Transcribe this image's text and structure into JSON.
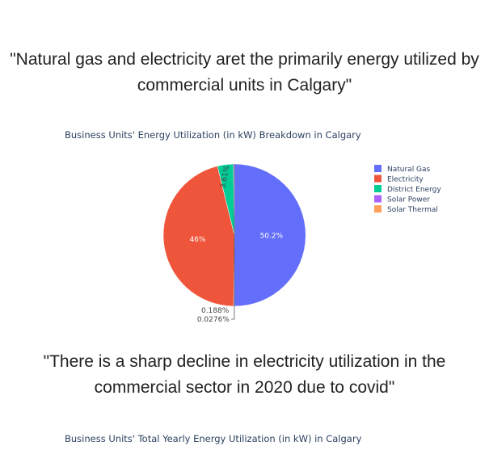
{
  "quote_1": "\"Natural gas and electricity aret the primarily energy utilized by commercial units in Calgary\"",
  "quote_2": "\"There is a sharp decline in electricity utilization in the commercial sector in 2020 due to covid\"",
  "chart_data": [
    {
      "type": "pie",
      "title": "Business Units' Energy Utilization (in kW) Breakdown in Calgary",
      "legend_position": "right",
      "slices": [
        {
          "label": "Natural Gas",
          "value": 50.2,
          "text": "50.2%",
          "color": "#636efa"
        },
        {
          "label": "Electricity",
          "value": 46,
          "text": "46%",
          "color": "#ef553b"
        },
        {
          "label": "District Energy",
          "value": 3.61,
          "text": "3.61%",
          "color": "#00cc96"
        },
        {
          "label": "Solar Power",
          "value": 0.188,
          "text": "0.188%",
          "color": "#ab63fa"
        },
        {
          "label": "Solar Thermal",
          "value": 0.0276,
          "text": "0.0276%",
          "color": "#ffa15a"
        }
      ]
    },
    {
      "type": "line",
      "title": "Business Units' Total Yearly Energy Utilization (in kW) in Calgary"
    }
  ]
}
